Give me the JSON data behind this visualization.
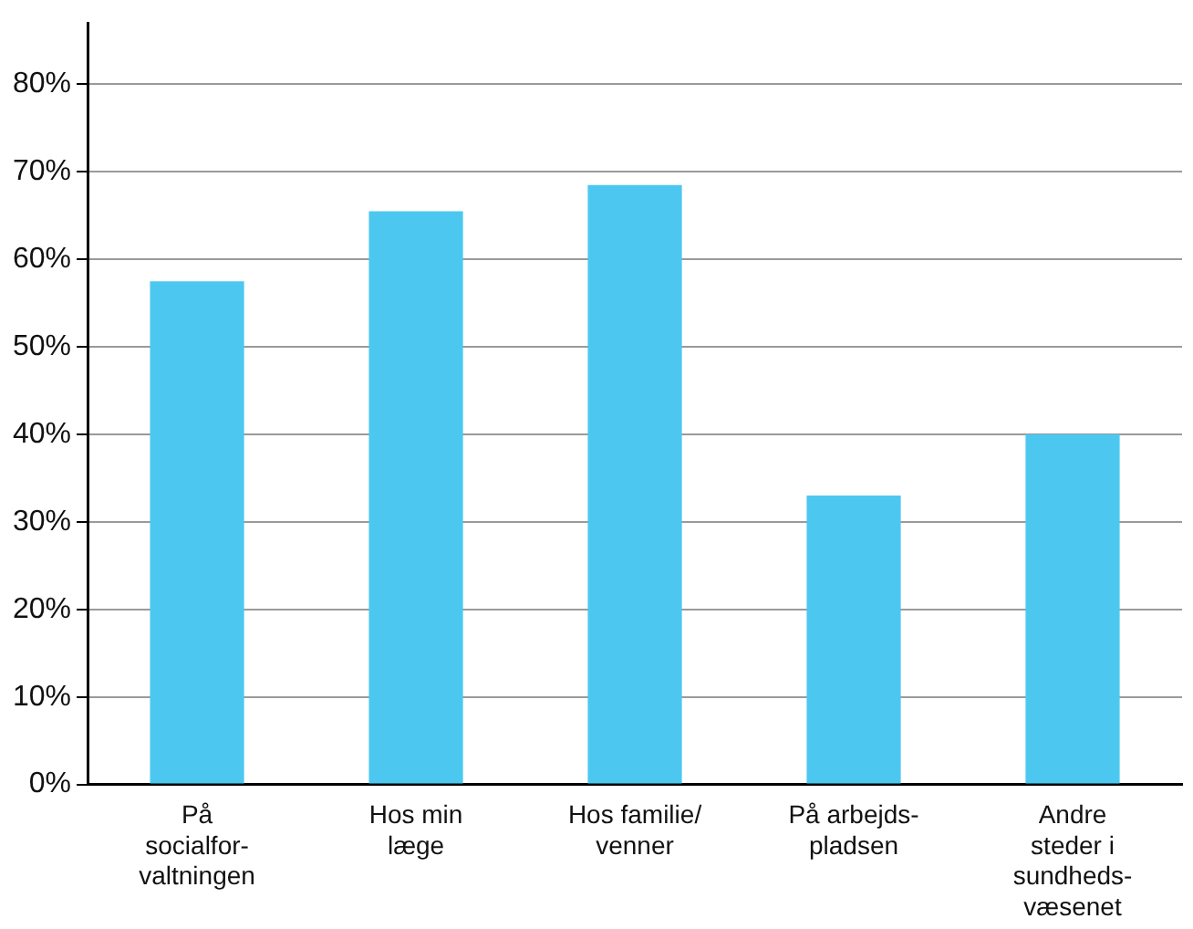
{
  "chart_data": {
    "type": "bar",
    "categories": [
      "På\nsocialfor-\nvaltningen",
      "Hos min\nlæge",
      "Hos familie/\nvenner",
      "På arbejds-\npladsen",
      "Andre\nsteder i\nsundheds-\nvæsenet"
    ],
    "values": [
      57.5,
      65.5,
      68.5,
      33,
      40
    ],
    "color": "#4cc8f0",
    "ylim": [
      0,
      87
    ],
    "yticks": [
      {
        "value": 0,
        "label": "0%"
      },
      {
        "value": 10,
        "label": "10%"
      },
      {
        "value": 20,
        "label": "20%"
      },
      {
        "value": 30,
        "label": "30%"
      },
      {
        "value": 40,
        "label": "40%"
      },
      {
        "value": 50,
        "label": "50%"
      },
      {
        "value": 60,
        "label": "60%"
      },
      {
        "value": 70,
        "label": "70%"
      },
      {
        "value": 80,
        "label": "80%"
      }
    ],
    "grid": "y"
  }
}
